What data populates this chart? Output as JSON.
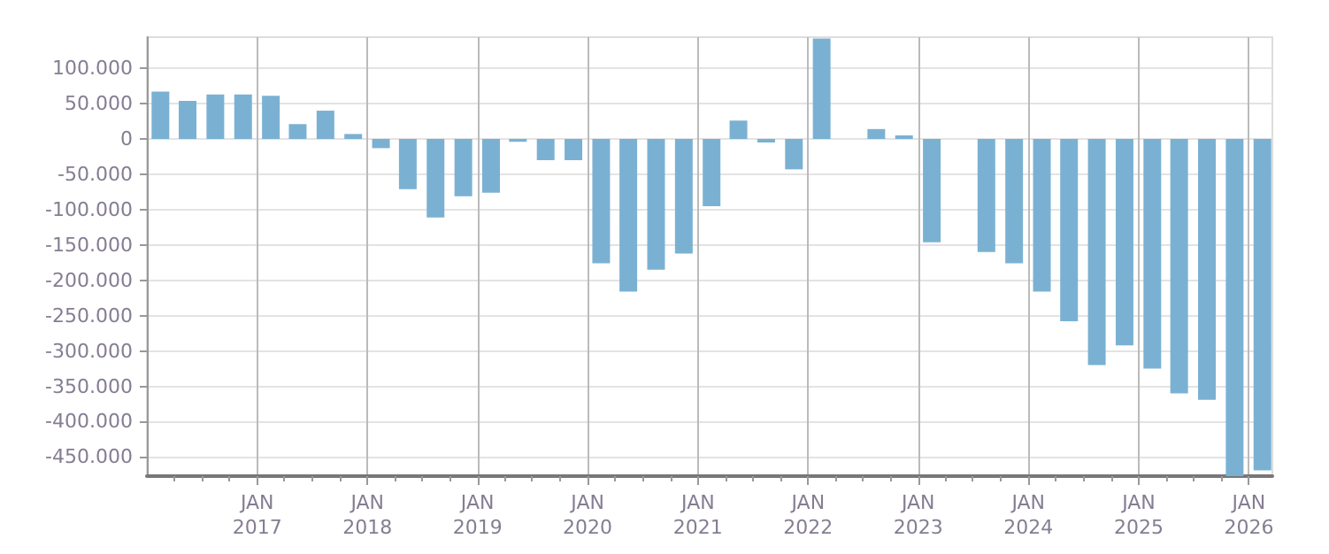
{
  "chart_data": {
    "type": "bar",
    "x": [
      "2016-02-15",
      "2016-05-15",
      "2016-08-15",
      "2016-11-15",
      "2017-02-15",
      "2017-05-15",
      "2017-08-15",
      "2017-11-15",
      "2018-02-15",
      "2018-05-15",
      "2018-08-15",
      "2018-11-15",
      "2019-02-15",
      "2019-05-15",
      "2019-08-15",
      "2019-11-15",
      "2020-02-15",
      "2020-05-15",
      "2020-08-15",
      "2020-11-15",
      "2021-02-15",
      "2021-05-15",
      "2021-08-15",
      "2021-11-15",
      "2022-02-15",
      "2022-05-15",
      "2022-08-15",
      "2022-11-15",
      "2023-02-15",
      "2023-05-15",
      "2023-08-15",
      "2023-11-15",
      "2024-02-15",
      "2024-05-15",
      "2024-08-15",
      "2024-11-15",
      "2025-02-15",
      "2025-05-15",
      "2025-08-15",
      "2025-11-15",
      "2026-02-15"
    ],
    "values": [
      67000,
      54000,
      63000,
      63000,
      61000,
      21000,
      40000,
      7000,
      -13000,
      -71000,
      -111000,
      -81000,
      -76000,
      -4000,
      -30000,
      -30000,
      -176000,
      -216000,
      -185000,
      -162000,
      -95000,
      26000,
      -5000,
      -43000,
      142000,
      null,
      14000,
      5000,
      -146000,
      null,
      -160000,
      -176000,
      -216000,
      -258000,
      -320000,
      -292000,
      -325000,
      -360000,
      -369000,
      -477000,
      -469000
    ],
    "color": "#7ab1d3",
    "xlim": [
      "2016-01-01",
      "2026-03-20"
    ],
    "xticks": [
      {
        "value": "2016-04-01",
        "label": null
      },
      {
        "value": "2016-07-01",
        "label": null
      },
      {
        "value": "2016-10-01",
        "label": null
      },
      {
        "value": "2017-01-01",
        "label": "JAN\n2017"
      },
      {
        "value": "2017-04-01",
        "label": null
      },
      {
        "value": "2017-07-01",
        "label": null
      },
      {
        "value": "2017-10-01",
        "label": null
      },
      {
        "value": "2018-01-01",
        "label": "JAN\n2018"
      },
      {
        "value": "2018-04-01",
        "label": null
      },
      {
        "value": "2018-07-01",
        "label": null
      },
      {
        "value": "2018-10-01",
        "label": null
      },
      {
        "value": "2019-01-01",
        "label": "JAN\n2019"
      },
      {
        "value": "2019-04-01",
        "label": null
      },
      {
        "value": "2019-07-01",
        "label": null
      },
      {
        "value": "2019-10-01",
        "label": null
      },
      {
        "value": "2020-01-01",
        "label": "JAN\n2020"
      },
      {
        "value": "2020-04-01",
        "label": null
      },
      {
        "value": "2020-07-01",
        "label": null
      },
      {
        "value": "2020-10-01",
        "label": null
      },
      {
        "value": "2021-01-01",
        "label": "JAN\n2021"
      },
      {
        "value": "2021-04-01",
        "label": null
      },
      {
        "value": "2021-07-01",
        "label": null
      },
      {
        "value": "2021-10-01",
        "label": null
      },
      {
        "value": "2022-01-01",
        "label": "JAN\n2022"
      },
      {
        "value": "2022-04-01",
        "label": null
      },
      {
        "value": "2022-07-01",
        "label": null
      },
      {
        "value": "2022-10-01",
        "label": null
      },
      {
        "value": "2023-01-01",
        "label": "JAN\n2023"
      },
      {
        "value": "2023-04-01",
        "label": null
      },
      {
        "value": "2023-07-01",
        "label": null
      },
      {
        "value": "2023-10-01",
        "label": null
      },
      {
        "value": "2024-01-01",
        "label": "JAN\n2024"
      },
      {
        "value": "2024-04-01",
        "label": null
      },
      {
        "value": "2024-07-01",
        "label": null
      },
      {
        "value": "2024-10-01",
        "label": null
      },
      {
        "value": "2025-01-01",
        "label": "JAN\n2025"
      },
      {
        "value": "2025-04-01",
        "label": null
      },
      {
        "value": "2025-07-01",
        "label": null
      },
      {
        "value": "2025-10-01",
        "label": null
      },
      {
        "value": "2026-01-01",
        "label": "JAN\n2026"
      }
    ],
    "ylim": [
      -477000,
      144000
    ],
    "yticks": [
      {
        "value": -450000,
        "label": "-450.000"
      },
      {
        "value": -400000,
        "label": "-400.000"
      },
      {
        "value": -350000,
        "label": "-350.000"
      },
      {
        "value": -300000,
        "label": "-300.000"
      },
      {
        "value": -250000,
        "label": "-250.000"
      },
      {
        "value": -200000,
        "label": "-200.000"
      },
      {
        "value": -150000,
        "label": "-150.000"
      },
      {
        "value": -100000,
        "label": "-100.000"
      },
      {
        "value": -50000,
        "label": "-50.000"
      },
      0,
      {
        "value": 50000,
        "label": "50.000"
      },
      {
        "value": 100000,
        "label": "100.000"
      }
    ],
    "grid": true
  }
}
